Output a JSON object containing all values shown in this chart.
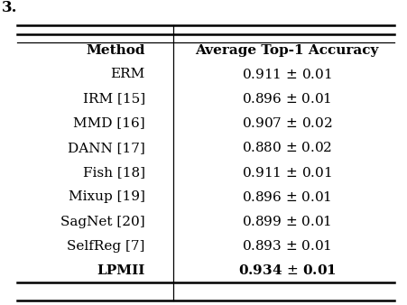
{
  "title_left": "Method",
  "title_right": "Average Top-1 Accuracy",
  "rows": [
    {
      "method": "ERM",
      "value": "0.911",
      "pm": "0.01",
      "bold": false
    },
    {
      "method": "IRM [15]",
      "value": "0.896",
      "pm": "0.01",
      "bold": false
    },
    {
      "method": "MMD [16]",
      "value": "0.907",
      "pm": "0.02",
      "bold": false
    },
    {
      "method": "DANN [17]",
      "value": "0.880",
      "pm": "0.02",
      "bold": false
    },
    {
      "method": "Fish [18]",
      "value": "0.911",
      "pm": "0.01",
      "bold": false
    },
    {
      "method": "Mixup [19]",
      "value": "0.896",
      "pm": "0.01",
      "bold": false
    },
    {
      "method": "SagNet [20]",
      "value": "0.899",
      "pm": "0.01",
      "bold": false
    },
    {
      "method": "SelfReg [7]",
      "value": "0.893",
      "pm": "0.01",
      "bold": false
    },
    {
      "method": "LPMII",
      "value": "0.934",
      "pm": "0.01",
      "bold": true
    }
  ],
  "bg_color": "#ffffff",
  "text_color": "#000000",
  "header_fontsize": 11,
  "body_fontsize": 11,
  "caption_text": "3.",
  "fig_width": 4.52,
  "fig_height": 3.38
}
